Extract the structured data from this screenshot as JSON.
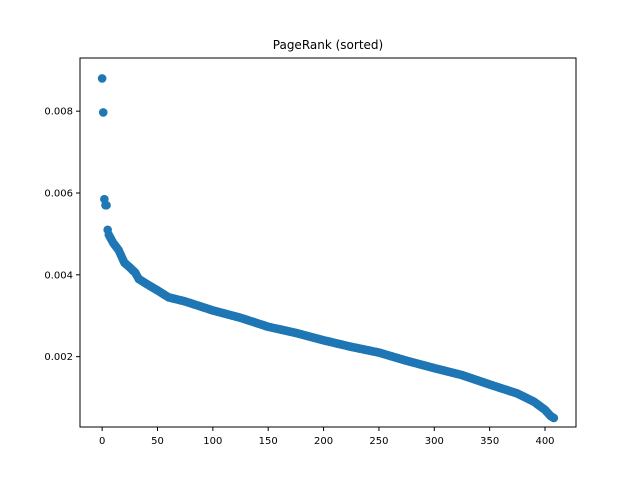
{
  "chart_data": {
    "type": "scatter",
    "title": "PageRank (sorted)",
    "xlabel": "",
    "ylabel": "",
    "n_points": 409,
    "xlim": [
      -20,
      428
    ],
    "ylim": [
      0.00028,
      0.0093
    ],
    "x_ticks": [
      0,
      50,
      100,
      150,
      200,
      250,
      300,
      350,
      400
    ],
    "y_ticks": [
      0.002,
      0.004,
      0.006,
      0.008
    ],
    "x_tick_labels": [
      "0",
      "50",
      "100",
      "150",
      "200",
      "250",
      "300",
      "350",
      "400"
    ],
    "y_tick_labels": [
      "0.002",
      "0.004",
      "0.006",
      "0.008"
    ],
    "grid": false,
    "legend": "none",
    "marker_color": "#1f77b4",
    "curve_anchors": [
      [
        0,
        0.0088
      ],
      [
        1,
        0.00797
      ],
      [
        2,
        0.00585
      ],
      [
        3,
        0.0057
      ],
      [
        4,
        0.0057
      ],
      [
        5,
        0.0051
      ],
      [
        6,
        0.00498
      ],
      [
        8,
        0.00488
      ],
      [
        10,
        0.00478
      ],
      [
        15,
        0.0046
      ],
      [
        20,
        0.0043
      ],
      [
        25,
        0.00418
      ],
      [
        30,
        0.00405
      ],
      [
        33,
        0.0039
      ],
      [
        40,
        0.00378
      ],
      [
        50,
        0.00362
      ],
      [
        60,
        0.00345
      ],
      [
        75,
        0.00335
      ],
      [
        100,
        0.00313
      ],
      [
        125,
        0.00295
      ],
      [
        150,
        0.00273
      ],
      [
        175,
        0.00258
      ],
      [
        200,
        0.0024
      ],
      [
        225,
        0.00224
      ],
      [
        250,
        0.0021
      ],
      [
        275,
        0.0019
      ],
      [
        300,
        0.00172
      ],
      [
        325,
        0.00155
      ],
      [
        350,
        0.00132
      ],
      [
        375,
        0.0011
      ],
      [
        390,
        0.0009
      ],
      [
        400,
        0.0007
      ],
      [
        405,
        0.00055
      ],
      [
        408,
        0.0005
      ]
    ]
  }
}
